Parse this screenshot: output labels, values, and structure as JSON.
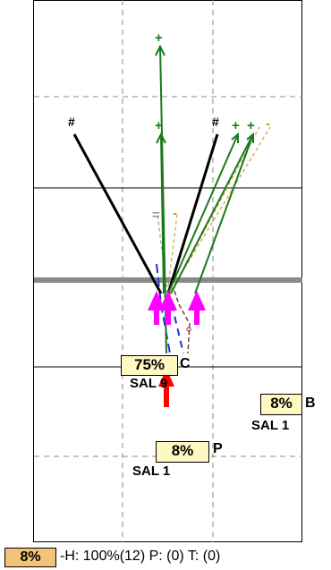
{
  "markers": {
    "hash": "#",
    "plus": "+",
    "dash": "-",
    "equals": "="
  },
  "tags": {
    "main": {
      "percent": "75%",
      "letter": "C",
      "sal": "SAL 9"
    },
    "b": {
      "percent": "8%",
      "letter": "B",
      "sal": "SAL  1"
    },
    "p": {
      "percent": "8%",
      "letter": "P",
      "sal": "SAL 1"
    }
  },
  "footer": {
    "badge": "8%",
    "info": "-H: 100%(12)  P: (0)  T: (0)"
  },
  "colors": {
    "black_line": "#000000",
    "green_line": "#1a7a1a",
    "orange_dash": "#d08a20",
    "blue_dash": "#2030d0",
    "brown_dash": "#7a3a2a",
    "magenta_arrow": "#ff00ff",
    "red_arrow": "#ff0000",
    "tag_fill": "#fff8c0",
    "footer_badge": "#f3c37a",
    "gray_bar": "#8a8a8a"
  }
}
